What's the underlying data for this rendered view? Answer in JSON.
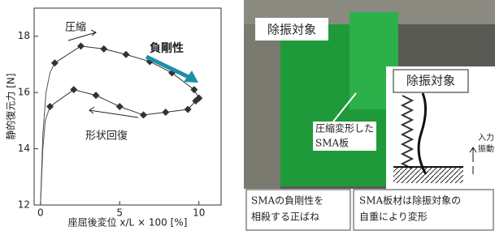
{
  "chart_data": {
    "type": "line",
    "x_label": "座屈後変位 x/L × 100 [%]",
    "y_label": "静的復元力 [N]",
    "xlim": [
      -0.4,
      11.4
    ],
    "xticks": [
      0,
      5,
      10
    ],
    "ylim": [
      12,
      19
    ],
    "yticks": [
      12,
      14,
      16,
      18
    ],
    "series": [
      {
        "color": "#555555",
        "marker": false,
        "x": [
          0,
          0.15,
          0.35,
          0.6,
          0.9
        ],
        "values": [
          12,
          14.5,
          16.0,
          16.7,
          17.05
        ]
      },
      {
        "color": "#555555",
        "marker": false,
        "x": [
          0,
          0.15,
          0.3,
          0.6
        ],
        "values": [
          12,
          14.0,
          15.0,
          15.5
        ]
      },
      {
        "color": "#333333",
        "marker": true,
        "x": [
          0.9,
          2.55,
          4.0,
          5.4,
          6.9,
          8.3,
          9.7,
          10.0
        ],
        "values": [
          17.05,
          17.65,
          17.55,
          17.35,
          17.1,
          16.7,
          16.1,
          15.8
        ]
      },
      {
        "color": "#333333",
        "marker": true,
        "x": [
          0.6,
          2.1,
          3.5,
          5.0,
          6.5,
          7.9,
          9.3,
          9.8,
          10.0
        ],
        "values": [
          15.5,
          16.1,
          15.9,
          15.5,
          15.2,
          15.3,
          15.4,
          15.7,
          15.8
        ]
      }
    ],
    "annotations": [
      {
        "text": "圧縮",
        "color": "#222222"
      },
      {
        "text": "負剛性",
        "color": "#e0302a"
      },
      {
        "text": "形状回復",
        "color": "#222222"
      }
    ]
  },
  "photo": {
    "title": "除振対象",
    "inset_title": "除振対象",
    "sma_label": [
      "圧縮変形した",
      "SMA板"
    ],
    "input_label": [
      "入力",
      "振動"
    ],
    "captions": [
      [
        "SMAの負剛性を",
        "相殺する正ばね"
      ],
      [
        "SMA板材は除振対象の",
        "自重により変形"
      ]
    ]
  }
}
